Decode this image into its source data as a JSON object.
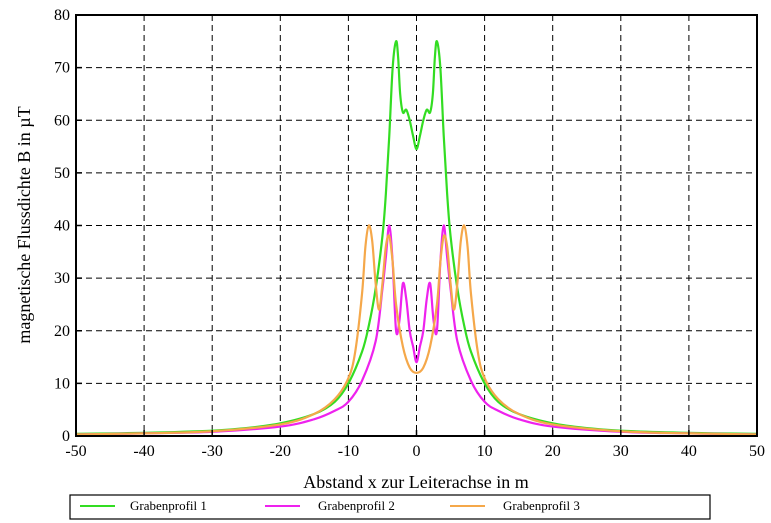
{
  "chart_data": {
    "type": "line",
    "xlabel": "Abstand x zur Leiterachse in m",
    "ylabel": "magnetische Flussdichte B in µT",
    "xlim": [
      -50,
      50
    ],
    "ylim": [
      0,
      80
    ],
    "xticks": [
      "-50",
      "-40",
      "-30",
      "-20",
      "-10",
      "0",
      "10",
      "20",
      "30",
      "40",
      "50"
    ],
    "yticks": [
      "0",
      "10",
      "20",
      "30",
      "40",
      "50",
      "60",
      "70",
      "80"
    ],
    "grid": true,
    "legend_position": "bottom",
    "series": [
      {
        "name": "Grabenprofil 1",
        "color": "#33dd22",
        "x": [
          -50,
          -40,
          -30,
          -25,
          -20,
          -15,
          -12,
          -10,
          -8,
          -7,
          -6,
          -5,
          -4.5,
          -4,
          -3.5,
          -3,
          -2.7,
          -2.4,
          -2,
          -1.5,
          -1,
          -0.5,
          0,
          0.5,
          1,
          1.5,
          2,
          2.4,
          2.7,
          3,
          3.5,
          4,
          4.5,
          5,
          6,
          7,
          8,
          10,
          12,
          15,
          20,
          25,
          30,
          40,
          50
        ],
        "y": [
          0.4,
          0.6,
          1.0,
          1.5,
          2.4,
          4.2,
          6.5,
          10,
          16,
          21,
          28,
          38,
          46,
          57,
          70,
          75,
          72,
          65,
          61.5,
          62,
          60,
          57,
          54.5,
          57,
          60,
          62,
          61.5,
          65,
          72,
          75,
          70,
          57,
          46,
          38,
          28,
          21,
          16,
          10,
          6.5,
          4.2,
          2.4,
          1.5,
          1.0,
          0.6,
          0.4
        ]
      },
      {
        "name": "Grabenprofil 2",
        "color": "#ee22ee",
        "x": [
          -50,
          -40,
          -30,
          -20,
          -15,
          -12,
          -10,
          -8,
          -6,
          -5,
          -4.5,
          -4,
          -3.5,
          -3,
          -2.5,
          -2,
          -1.5,
          -1,
          -0.5,
          0,
          0.5,
          1,
          1.5,
          2,
          2.5,
          3,
          3.5,
          4,
          4.5,
          5,
          6,
          8,
          10,
          12,
          15,
          20,
          30,
          40,
          50
        ],
        "y": [
          0.3,
          0.5,
          0.8,
          1.8,
          3.2,
          4.8,
          6.5,
          10.5,
          18,
          28,
          34,
          40,
          33,
          20,
          22,
          29,
          26,
          20,
          17,
          14,
          17,
          20,
          26,
          29,
          22,
          20,
          33,
          40,
          34,
          28,
          18,
          10.5,
          6.5,
          4.8,
          3.2,
          1.8,
          0.8,
          0.5,
          0.3
        ]
      },
      {
        "name": "Grabenprofil 3",
        "color": "#f5a84a",
        "x": [
          -50,
          -40,
          -30,
          -20,
          -15,
          -12,
          -10,
          -9,
          -8,
          -7.5,
          -7,
          -6.5,
          -6,
          -5.5,
          -5,
          -4.5,
          -4,
          -3.5,
          -3,
          -2,
          -1,
          0,
          1,
          2,
          3,
          3.5,
          4,
          4.5,
          5,
          5.5,
          6,
          6.5,
          7,
          7.5,
          8,
          9,
          10,
          12,
          15,
          20,
          30,
          40,
          50
        ],
        "y": [
          0.3,
          0.5,
          0.9,
          2.2,
          4.2,
          7,
          11,
          16,
          27,
          36,
          40,
          37,
          29,
          24,
          29,
          36,
          38,
          33,
          25,
          17,
          13,
          12,
          13,
          17,
          25,
          33,
          38,
          36,
          29,
          24,
          29,
          37,
          40,
          36,
          27,
          16,
          11,
          7,
          4.2,
          2.2,
          0.9,
          0.5,
          0.3
        ]
      }
    ]
  },
  "legend": {
    "items": [
      {
        "label": "Grabenprofil 1",
        "color": "#33dd22"
      },
      {
        "label": "Grabenprofil 2",
        "color": "#ee22ee"
      },
      {
        "label": "Grabenprofil 3",
        "color": "#f5a84a"
      }
    ]
  }
}
